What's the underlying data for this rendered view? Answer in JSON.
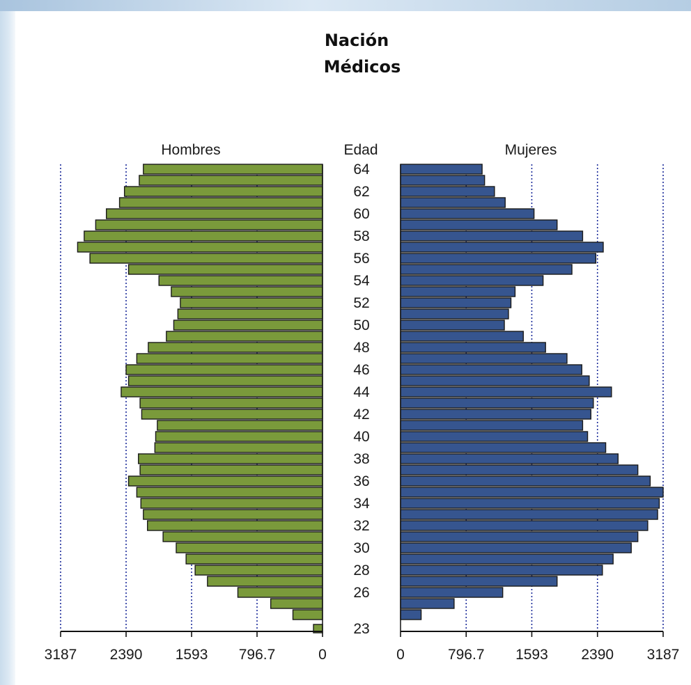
{
  "chart_data": {
    "type": "bar",
    "title": "Nación",
    "subtitle": "Médicos",
    "center_label": "Edad",
    "xlim": [
      0,
      3187
    ],
    "grid": true,
    "colors": {
      "men": "#7a9a3b",
      "women": "#36558f",
      "grid": "#1a2a9a"
    },
    "tick_labels_left": [
      "3187",
      "2390",
      "1593",
      "796.7",
      "0"
    ],
    "tick_labels_right": [
      "0",
      "796.7",
      "1593",
      "2390",
      "3187"
    ],
    "tick_values": [
      0,
      796.7,
      1593,
      2390,
      3187
    ],
    "age_labels": [
      "64",
      "62",
      "60",
      "58",
      "56",
      "54",
      "52",
      "50",
      "48",
      "46",
      "44",
      "42",
      "40",
      "38",
      "36",
      "34",
      "32",
      "30",
      "28",
      "26",
      "23"
    ],
    "ages": [
      64,
      63,
      62,
      61,
      60,
      59,
      58,
      57,
      56,
      55,
      54,
      53,
      52,
      51,
      50,
      49,
      48,
      47,
      46,
      45,
      44,
      43,
      42,
      41,
      40,
      39,
      38,
      37,
      36,
      35,
      34,
      33,
      32,
      31,
      30,
      29,
      28,
      27,
      26,
      25,
      24,
      23
    ],
    "series": [
      {
        "name": "Hombres",
        "values": [
          2180,
          2230,
          2410,
          2470,
          2630,
          2760,
          2900,
          2980,
          2830,
          2360,
          1990,
          1840,
          1730,
          1760,
          1810,
          1900,
          2120,
          2260,
          2390,
          2360,
          2450,
          2220,
          2200,
          2010,
          2030,
          2040,
          2240,
          2220,
          2360,
          2260,
          2210,
          2180,
          2130,
          1940,
          1780,
          1660,
          1550,
          1400,
          1030,
          630,
          360,
          110
        ]
      },
      {
        "name": "Mujeres",
        "values": [
          990,
          1020,
          1140,
          1270,
          1620,
          1900,
          2210,
          2460,
          2370,
          2080,
          1730,
          1390,
          1340,
          1310,
          1260,
          1490,
          1760,
          2020,
          2200,
          2290,
          2560,
          2340,
          2310,
          2210,
          2270,
          2490,
          2640,
          2880,
          3030,
          3187,
          3140,
          3120,
          3000,
          2880,
          2800,
          2580,
          2450,
          1900,
          1240,
          650,
          250,
          0
        ]
      }
    ]
  }
}
